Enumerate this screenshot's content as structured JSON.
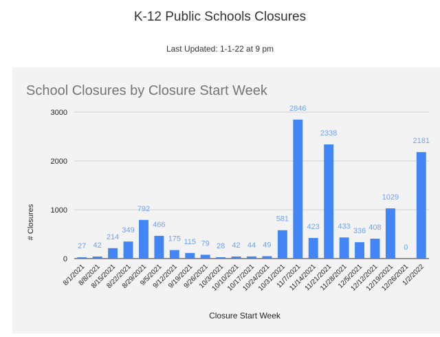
{
  "page": {
    "title": "K-12 Public Schools Closures",
    "last_updated": "Last Updated:  1-1-22 at 9 pm"
  },
  "chart_data": {
    "type": "bar",
    "title": "School Closures by Closure Start Week",
    "xlabel": "Closure Start Week",
    "ylabel": "# Closures",
    "ylim": [
      0,
      3000
    ],
    "yticks": [
      0,
      1000,
      2000,
      3000
    ],
    "grid": true,
    "legend": "none",
    "bar_color": "#4285f4",
    "label_color": "#6fa1f5",
    "title_color": "#757575",
    "categories": [
      "8/1/2021",
      "8/8/2021",
      "8/15/2021",
      "8/22/2021",
      "8/29/2021",
      "9/5/2021",
      "9/12/2021",
      "9/19/2021",
      "9/26/2021",
      "10/3/2021",
      "10/10/2021",
      "10/17/2021",
      "10/24/2021",
      "10/31/2021",
      "11/7/2021",
      "11/14/2021",
      "11/21/2021",
      "11/28/2021",
      "12/5/2021",
      "12/12/2021",
      "12/19/2021",
      "12/26/2021",
      "1/2/2022"
    ],
    "values": [
      27,
      42,
      214,
      349,
      792,
      466,
      175,
      115,
      79,
      28,
      42,
      44,
      49,
      581,
      2846,
      423,
      2338,
      433,
      336,
      408,
      1029,
      0,
      2181
    ]
  }
}
